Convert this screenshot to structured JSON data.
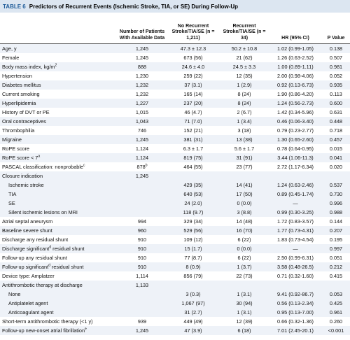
{
  "header": {
    "label": "TABLE 6",
    "title": "Predictors of Recurrent Events (Ischemic Stroke, TIA, or SE) During Follow-Up"
  },
  "table": {
    "columns": [
      null,
      "Number of Patients With Available Data",
      "No Recurrent Stroke/TIA/SE (n = 1,211)",
      "Recurrent Stroke/TIA/SE (n = 34)",
      "HR (95% CI)",
      "P Value"
    ],
    "rows": [
      [
        "Age, y",
        "1,245",
        "47.3 ± 12.3",
        "50.2 ± 10.8",
        "1.02 (0.99-1.05)",
        "0.138"
      ],
      [
        "Female",
        "1,245",
        "673 (56)",
        "21 (62)",
        "1.26 (0.63-2.52)",
        "0.507"
      ],
      [
        {
          "text": "Body mass index, kg/m",
          "sup": "2"
        },
        "888",
        "24.6 ± 4.0",
        "24.5 ± 3.3",
        "1.00 (0.89-1.11)",
        "0.981"
      ],
      [
        "Hypertension",
        "1,230",
        "259 (22)",
        "12 (35)",
        "2.00 (0.98-4.06)",
        "0.052"
      ],
      [
        "Diabetes mellitus",
        "1,232",
        "37 (3.1)",
        "1 (2.9)",
        "0.92 (0.13-6.73)",
        "0.935"
      ],
      [
        "Current smoking",
        "1,232",
        "165 (14)",
        "8 (24)",
        "1.90 (0.86-4.20)",
        "0.113"
      ],
      [
        "Hyperlipidemia",
        "1,227",
        "237 (20)",
        "8 (24)",
        "1.24 (0.56-2.73)",
        "0.600"
      ],
      [
        "History of DVT or PE",
        "1,015",
        "46 (4.7)",
        "2 (6.7)",
        "1.42 (0.34-5.96)",
        "0.631"
      ],
      [
        "Oral contraceptives",
        "1,043",
        "71 (7.0)",
        "1 (3.4)",
        "0.46 (0.06-3.40)",
        "0.448"
      ],
      [
        "Thrombophilia",
        "746",
        "152 (21)",
        "3 (18)",
        "0.79 (0.23-2.77)",
        "0.718"
      ],
      [
        "Migraine",
        "1,245",
        "381 (31)",
        "13 (38)",
        "1.30 (0.65-2.60)",
        "0.457"
      ],
      [
        "RoPE score",
        "1,124",
        "6.3 ± 1.7",
        "5.6 ± 1.7",
        "0.78 (0.64-0.95)",
        "0.015"
      ],
      [
        {
          "text": "RoPE score < 7",
          "sup": "a"
        },
        "1,124",
        "819 (75)",
        "31 (91)",
        "3.44 (1.06-11.3)",
        "0.041"
      ],
      [
        {
          "text": "PASCAL classification: nonprobable",
          "sup": "c"
        },
        {
          "text": "878",
          "sup": "b"
        },
        "464 (55)",
        "23 (77)",
        "2.72 (1.17-6.34)",
        "0.020"
      ],
      [
        "Closure indication",
        "1,245",
        null,
        null,
        null,
        null
      ],
      [
        "Ischemic stroke",
        null,
        "429 (35)",
        "14 (41)",
        "1.24 (0.63-2.46)",
        "0.537"
      ],
      [
        "TIA",
        null,
        "640 (53)",
        "17 (50)",
        "0.89 (0.45-1.74)",
        "0.730"
      ],
      [
        "SE",
        null,
        "24 (2.0)",
        "0 (0.0)",
        "—",
        "0.996"
      ],
      [
        "Silent ischemic lesions on MRI",
        null,
        "118 (9.7)",
        "3 (8.8)",
        "0.99 (0.30-3.25)",
        "0.988"
      ],
      [
        "Atrial septal aneurysm",
        "994",
        "329 (34)",
        "14 (48)",
        "1.72 (0.83-3.57)",
        "0.144"
      ],
      [
        "Baseline severe shunt",
        "960",
        "529 (56)",
        "16 (70)",
        "1.77 (0.73-4.31)",
        "0.207"
      ],
      [
        "Discharge any residual shunt",
        "910",
        "109 (12)",
        "6 (22)",
        "1.83 (0.73-4.54)",
        "0.195"
      ],
      [
        {
          "text": "Discharge significant",
          "sup": "d",
          "after": " residual shunt"
        },
        "910",
        "15 (1.7)",
        "0 (0.0)",
        "—",
        "0.997"
      ],
      [
        "Follow-up any residual shunt",
        "910",
        "77 (8.7)",
        "6 (22)",
        "2.50 (0.99-6.31)",
        "0.051"
      ],
      [
        {
          "text": "Follow-up significant",
          "sup": "d",
          "after": " residual shunt"
        },
        "910",
        "8 (0.9)",
        "1 (3.7)",
        "3.58 (0.48-26.5)",
        "0.212"
      ],
      [
        "Device type: Amplatzer",
        "1,114",
        "856 (79)",
        "22 (73)",
        "0.71 (0.32-1.60)",
        "0.415"
      ],
      [
        "Antithrombotic therapy at discharge",
        "1,133",
        null,
        null,
        null,
        null
      ],
      [
        "None",
        null,
        "3 (0.3)",
        "1 (3.1)",
        "9.41 (0.92-86.7)",
        "0.053"
      ],
      [
        "Antiplatelet agent",
        null,
        "1,067 (97)",
        "30 (94)",
        "0.56 (0.13-2.34)",
        "0.425"
      ],
      [
        "Anticoagulant agent",
        null,
        "31 (2.7)",
        "1 (3.1)",
        "0.95 (0.13-7.00)",
        "0.961"
      ],
      [
        "Short-term antithrombotic therapy (<1 y)",
        "939",
        "449 (49)",
        "12 (39)",
        "0.66 (0.32-1.36)",
        "0.260"
      ],
      [
        {
          "text": "Follow-up new-onset atrial fibrillation",
          "sup": "e"
        },
        "1,245",
        "47 (3.9)",
        "6 (18)",
        "7.01 (2.45-20.1)",
        "<0.001"
      ]
    ]
  }
}
